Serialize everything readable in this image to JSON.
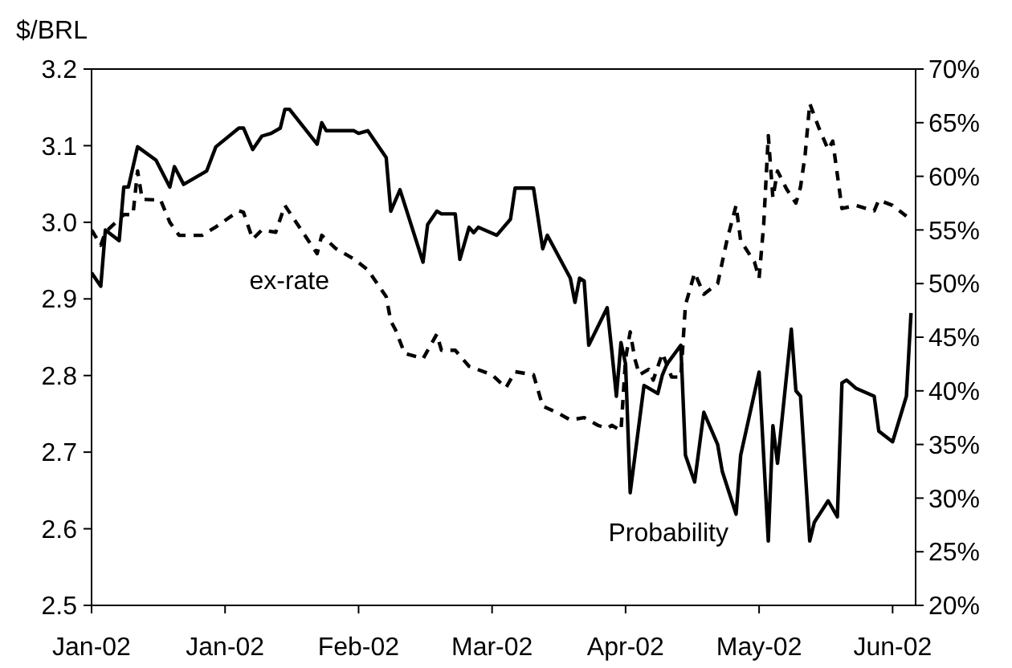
{
  "chart_data": {
    "type": "line",
    "ylabel": "$/BRL",
    "xlim": [
      "2002-01-01",
      "2002-06-29"
    ],
    "xticks": [
      {
        "value": "2002-01-01",
        "label": "Jan-02"
      },
      {
        "value": "2002-01-30",
        "label": "Jan-02"
      },
      {
        "value": "2002-02-28",
        "label": "Feb-02"
      },
      {
        "value": "2002-03-29",
        "label": "Mar-02"
      },
      {
        "value": "2002-04-27",
        "label": "Apr-02"
      },
      {
        "value": "2002-05-26",
        "label": "May-02"
      },
      {
        "value": "2002-06-24",
        "label": "Jun-02"
      }
    ],
    "ylim": [
      2.5,
      3.2
    ],
    "yticks": [
      2.5,
      2.6,
      2.7,
      2.8,
      2.9,
      {
        "value": 3,
        "label": "3.0"
      },
      3.1,
      3.2
    ],
    "y2lim": [
      20,
      70
    ],
    "y2ticks": [
      {
        "value": 20,
        "label": "20%"
      },
      {
        "value": 25,
        "label": "25%"
      },
      {
        "value": 30,
        "label": "30%"
      },
      {
        "value": 35,
        "label": "35%"
      },
      {
        "value": 40,
        "label": "40%"
      },
      {
        "value": 45,
        "label": "45%"
      },
      {
        "value": 50,
        "label": "50%"
      },
      {
        "value": 55,
        "label": "55%"
      },
      {
        "value": 60,
        "label": "60%"
      },
      {
        "value": 65,
        "label": "65%"
      },
      {
        "value": 70,
        "label": "70%"
      }
    ],
    "grid": false,
    "legend": false,
    "marker": "none",
    "series": [
      {
        "name": "ex-rate",
        "color": "#000000",
        "line_style": "dashed",
        "x": [
          "2002-01-01",
          "2002-01-03",
          "2002-01-04",
          "2002-01-08",
          "2002-01-10",
          "2002-01-11",
          "2002-01-12",
          "2002-01-16",
          "2002-01-18",
          "2002-01-20",
          "2002-01-25",
          "2002-01-28",
          "2002-02-02",
          "2002-02-03",
          "2002-02-05",
          "2002-02-07",
          "2002-02-10",
          "2002-02-12",
          "2002-02-14",
          "2002-02-19",
          "2002-02-20",
          "2002-02-23",
          "2002-02-27",
          "2002-03-02",
          "2002-03-06",
          "2002-03-07",
          "2002-03-08",
          "2002-03-10",
          "2002-03-14",
          "2002-03-17",
          "2002-03-18",
          "2002-03-21",
          "2002-03-24",
          "2002-03-29",
          "2002-04-01",
          "2002-04-03",
          "2002-04-07",
          "2002-04-09",
          "2002-04-12",
          "2002-04-15",
          "2002-04-18",
          "2002-04-21",
          "2002-04-23",
          "2002-04-24",
          "2002-04-26",
          "2002-04-27",
          "2002-04-28",
          "2002-04-29",
          "2002-04-30",
          "2002-05-02",
          "2002-05-03",
          "2002-05-05",
          "2002-05-07",
          "2002-05-09",
          "2002-05-10",
          "2002-05-12",
          "2002-05-14",
          "2002-05-17",
          "2002-05-19",
          "2002-05-21",
          "2002-05-22",
          "2002-05-25",
          "2002-05-26",
          "2002-05-27",
          "2002-05-28",
          "2002-05-29",
          "2002-05-30",
          "2002-06-01",
          "2002-06-03",
          "2002-06-04",
          "2002-06-05",
          "2002-06-06",
          "2002-06-08",
          "2002-06-10",
          "2002-06-11",
          "2002-06-13",
          "2002-06-16",
          "2002-06-20",
          "2002-06-21",
          "2002-06-24",
          "2002-06-27"
        ],
        "values": [
          2.99,
          2.97,
          2.987,
          3.01,
          3.01,
          3.067,
          3.03,
          3.029,
          3.0,
          2.983,
          2.983,
          2.994,
          3.015,
          3.013,
          2.978,
          2.99,
          2.987,
          3.022,
          3.004,
          2.959,
          2.983,
          2.966,
          2.952,
          2.938,
          2.903,
          2.871,
          2.86,
          2.829,
          2.822,
          2.854,
          2.833,
          2.833,
          2.812,
          2.801,
          2.784,
          2.805,
          2.801,
          2.76,
          2.752,
          2.742,
          2.745,
          2.735,
          2.731,
          2.735,
          2.728,
          2.822,
          2.857,
          2.822,
          2.801,
          2.808,
          2.794,
          2.829,
          2.798,
          2.798,
          2.892,
          2.934,
          2.906,
          2.92,
          2.976,
          3.022,
          2.976,
          2.948,
          2.927,
          2.997,
          3.113,
          3.032,
          3.067,
          3.043,
          3.025,
          3.046,
          3.088,
          3.155,
          3.123,
          3.095,
          3.106,
          3.018,
          3.022,
          3.015,
          3.029,
          3.022,
          3.008
        ]
      },
      {
        "name": "Probability",
        "color": "#000000",
        "line_style": "solid",
        "axis": "y2",
        "x": [
          "2002-01-01",
          "2002-01-03",
          "2002-01-04",
          "2002-01-07",
          "2002-01-08",
          "2002-01-09",
          "2002-01-11",
          "2002-01-15",
          "2002-01-18",
          "2002-01-19",
          "2002-01-21",
          "2002-01-26",
          "2002-01-28",
          "2002-02-02",
          "2002-02-03",
          "2002-02-05",
          "2002-02-07",
          "2002-02-09",
          "2002-02-11",
          "2002-02-12",
          "2002-02-13",
          "2002-02-19",
          "2002-02-20",
          "2002-02-21",
          "2002-02-27",
          "2002-02-28",
          "2002-03-02",
          "2002-03-06",
          "2002-03-07",
          "2002-03-09",
          "2002-03-14",
          "2002-03-15",
          "2002-03-17",
          "2002-03-18",
          "2002-03-21",
          "2002-03-22",
          "2002-03-24",
          "2002-03-25",
          "2002-03-26",
          "2002-03-30",
          "2002-04-02",
          "2002-04-03",
          "2002-04-07",
          "2002-04-09",
          "2002-04-10",
          "2002-04-15",
          "2002-04-16",
          "2002-04-17",
          "2002-04-18",
          "2002-04-19",
          "2002-04-23",
          "2002-04-24",
          "2002-04-25",
          "2002-04-26",
          "2002-04-27",
          "2002-04-28",
          "2002-05-01",
          "2002-05-02",
          "2002-05-04",
          "2002-05-05",
          "2002-05-06",
          "2002-05-09",
          "2002-05-10",
          "2002-05-12",
          "2002-05-14",
          "2002-05-17",
          "2002-05-18",
          "2002-05-21",
          "2002-05-22",
          "2002-05-26",
          "2002-05-28",
          "2002-05-29",
          "2002-05-30",
          "2002-06-02",
          "2002-06-03",
          "2002-06-04",
          "2002-06-06",
          "2002-06-07",
          "2002-06-10",
          "2002-06-12",
          "2002-06-13",
          "2002-06-14",
          "2002-06-16",
          "2002-06-20",
          "2002-06-21",
          "2002-06-24",
          "2002-06-27",
          "2002-06-28"
        ],
        "values": [
          51,
          49.75,
          55,
          54,
          59,
          59,
          62.75,
          61.5,
          59,
          60.9,
          59.25,
          60.5,
          62.75,
          64.5,
          64.5,
          62.5,
          63.75,
          64,
          64.5,
          66.25,
          66.25,
          63,
          65,
          64.25,
          64.25,
          64,
          64.25,
          61.75,
          56.75,
          58.75,
          52,
          55.5,
          56.75,
          56.5,
          56.5,
          52.25,
          55.25,
          54.75,
          55.25,
          54.5,
          56,
          58.9,
          58.9,
          53.25,
          54.5,
          50.5,
          48.25,
          50.5,
          50.25,
          44.25,
          47.75,
          43.75,
          39.5,
          44.5,
          42.5,
          30.5,
          40.5,
          40.25,
          39.75,
          41.5,
          42.5,
          44.25,
          34,
          31.5,
          38,
          35,
          32.5,
          28.5,
          34,
          41.75,
          26,
          36.75,
          33.25,
          45.75,
          40,
          39.5,
          26,
          27.75,
          29.75,
          28.25,
          40.75,
          41,
          40.25,
          39.5,
          36.25,
          35.25,
          39.5,
          47.25
        ]
      }
    ]
  }
}
